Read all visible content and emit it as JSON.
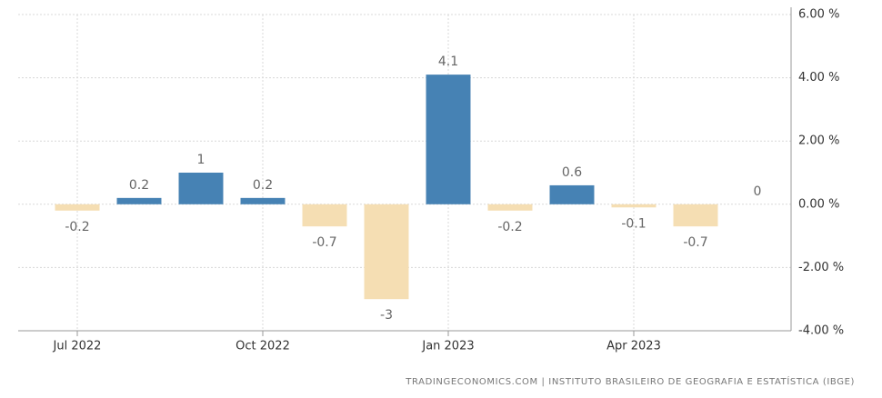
{
  "chart_data": {
    "type": "bar",
    "categories": [
      "Jul 2022",
      null,
      null,
      "Oct 2022",
      null,
      null,
      "Jan 2023",
      null,
      null,
      "Apr 2023",
      null,
      null
    ],
    "values": [
      -0.2,
      0.2,
      1,
      0.2,
      -0.7,
      -3,
      4.1,
      -0.2,
      0.6,
      -0.1,
      -0.7,
      0
    ],
    "positive_color": "#4682b4",
    "negative_color": "#f5deb3",
    "ylim": [
      -4,
      6
    ],
    "yticks": [
      {
        "value": -4,
        "label": "-4.00 %"
      },
      {
        "value": -2,
        "label": "-2.00 %"
      },
      {
        "value": 0,
        "label": "0.00 %"
      },
      {
        "value": 2,
        "label": "2.00 %"
      },
      {
        "value": 4,
        "label": "4.00 %"
      },
      {
        "value": 6,
        "label": "6.00 %"
      }
    ],
    "grid": true,
    "source": "TRADINGECONOMICS.COM  |  INSTITUTO BRASILEIRO DE GEOGRAFIA E ESTATÍSTICA (IBGE)"
  }
}
